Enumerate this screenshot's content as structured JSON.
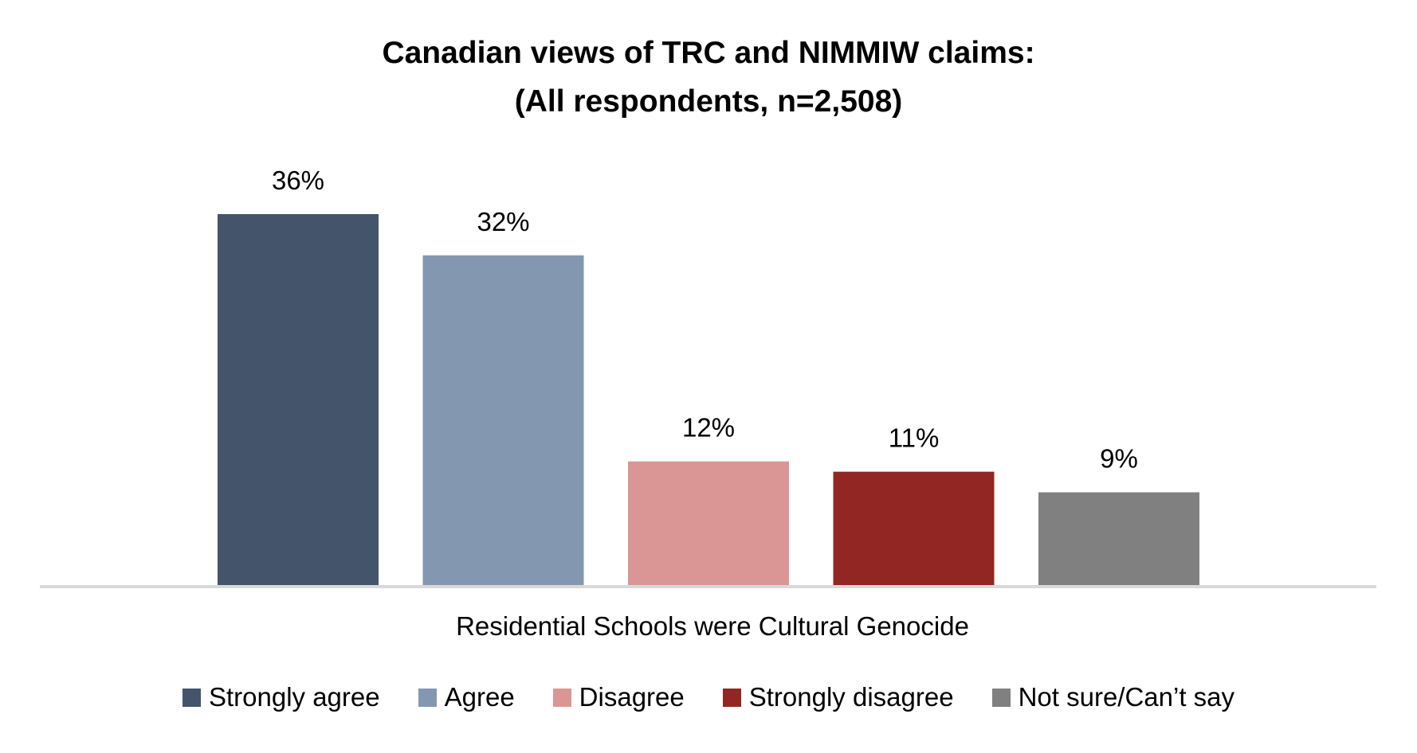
{
  "chart_data": {
    "type": "bar",
    "title": "Canadian views of TRC and NIMMIW claims:",
    "subtitle": "(All respondents, n=2,508)",
    "categories": [
      "Residential Schools were Cultural Genocide"
    ],
    "series": [
      {
        "name": "Strongly agree",
        "values": [
          36
        ],
        "label": "36%",
        "color": "#44546A"
      },
      {
        "name": "Agree",
        "values": [
          32
        ],
        "label": "32%",
        "color": "#8497B0"
      },
      {
        "name": "Disagree",
        "values": [
          12
        ],
        "label": "12%",
        "color": "#DA9694"
      },
      {
        "name": "Strongly disagree",
        "values": [
          11
        ],
        "label": "11%",
        "color": "#922622"
      },
      {
        "name": "Not sure/Can’t say",
        "values": [
          9
        ],
        "label": "9%",
        "color": "#808080"
      }
    ],
    "xlabel": "Residential Schools were Cultural Genocide",
    "ylabel": "",
    "ylim": [
      0,
      36
    ],
    "grid": false,
    "legend": "bottom"
  }
}
